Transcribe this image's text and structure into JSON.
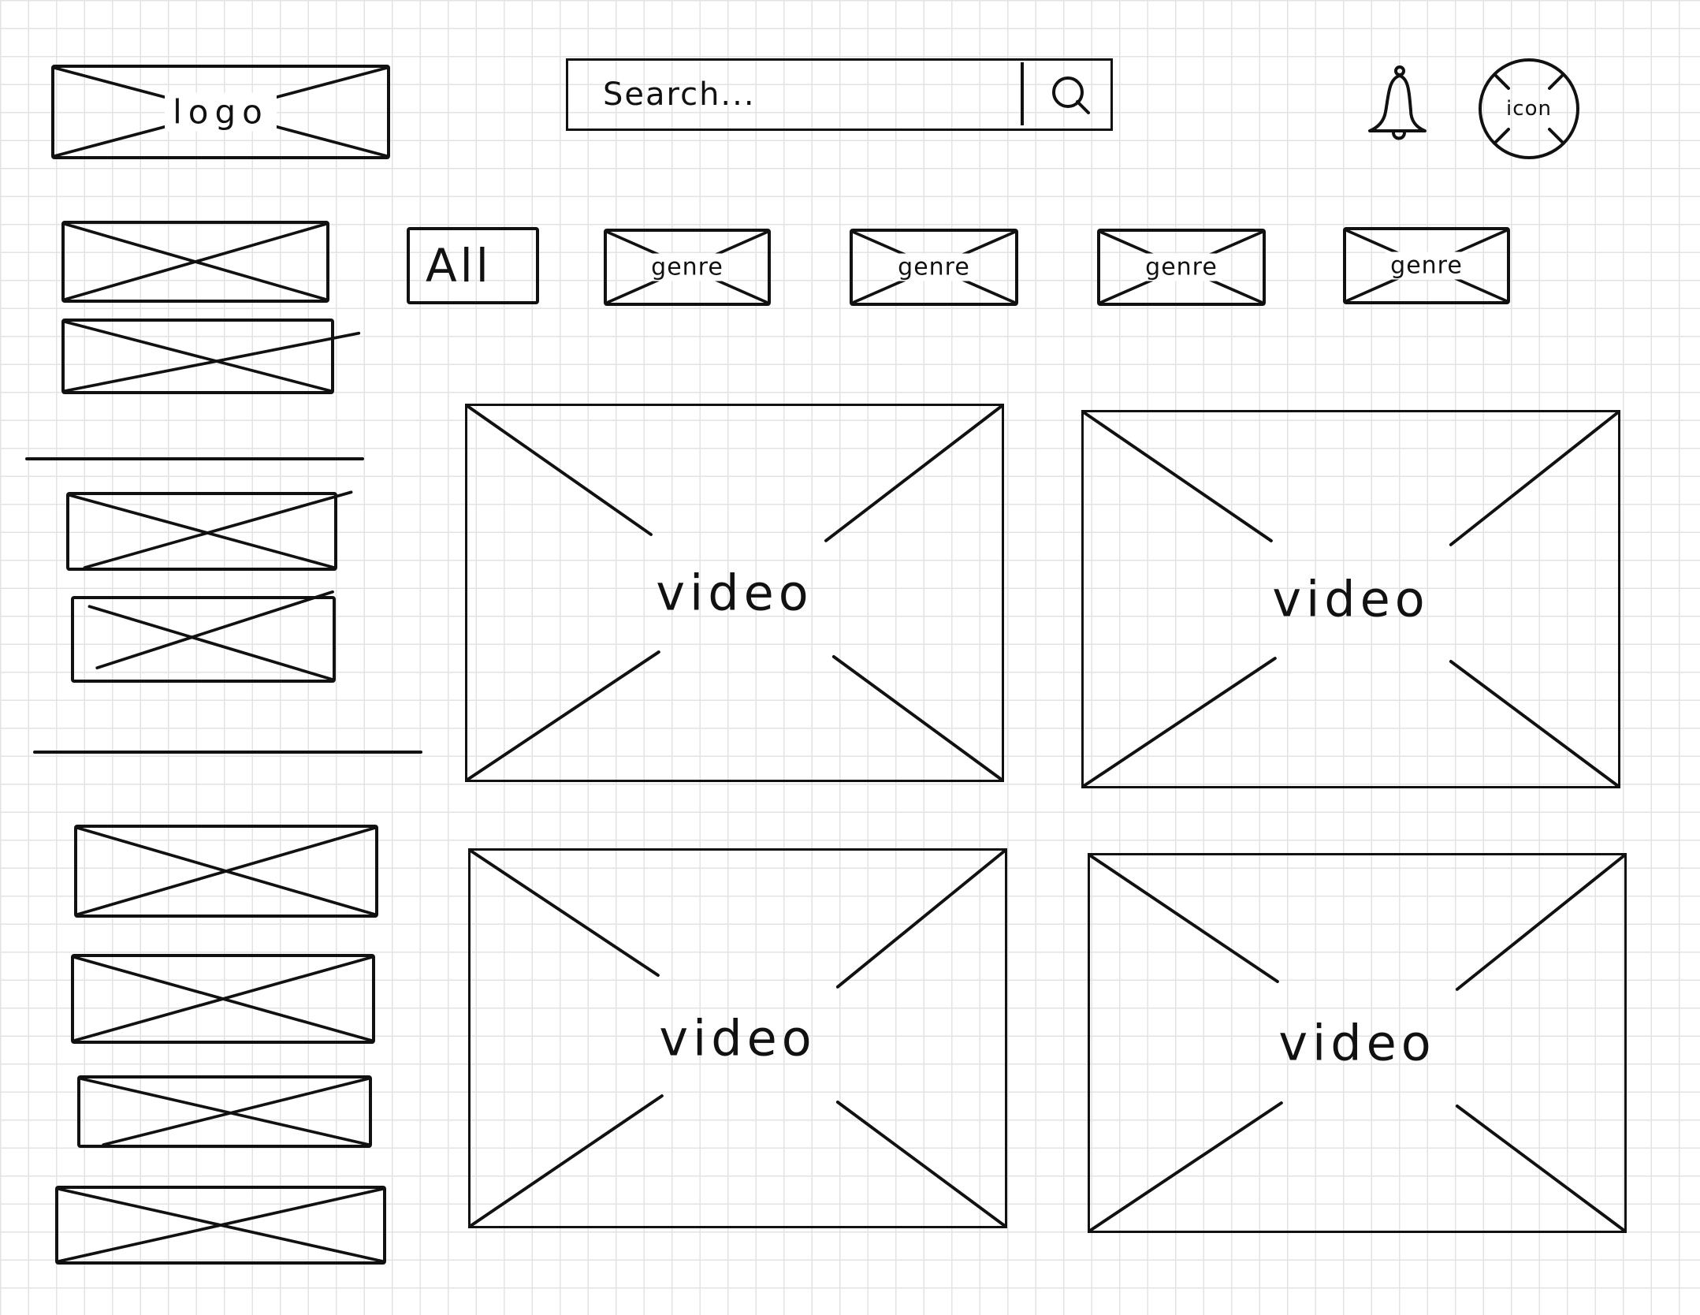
{
  "header": {
    "logo_text": "logo",
    "search": {
      "placeholder": "Search..."
    },
    "icons": {
      "search": "search-icon",
      "notification": "bell-icon",
      "avatar": "user-avatar-icon"
    },
    "avatar_text": "icon"
  },
  "filters": {
    "all_label": "All",
    "genres": [
      {
        "label": "genre"
      },
      {
        "label": "genre"
      },
      {
        "label": "genre"
      },
      {
        "label": "genre"
      }
    ]
  },
  "videos": [
    {
      "label": "video"
    },
    {
      "label": "video"
    },
    {
      "label": "video"
    },
    {
      "label": "video"
    }
  ]
}
